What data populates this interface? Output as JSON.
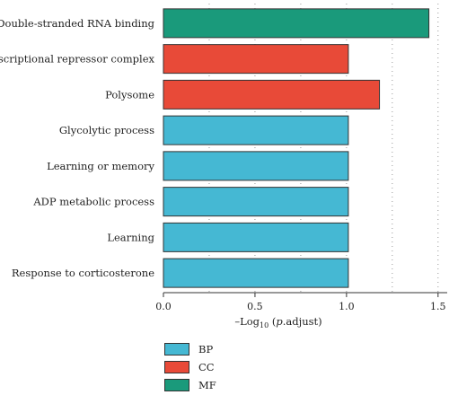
{
  "chart_data": {
    "type": "bar",
    "orientation": "horizontal",
    "categories": [
      "Double-stranded RNA binding",
      "Transcriptional repressor complex",
      "Polysome",
      "Glycolytic process",
      "Learning or memory",
      "ADP metabolic process",
      "Learning",
      "Response to corticosterone"
    ],
    "values": [
      1.45,
      1.01,
      1.18,
      1.01,
      1.01,
      1.01,
      1.01,
      1.01
    ],
    "groups": [
      "MF",
      "CC",
      "CC",
      "BP",
      "BP",
      "BP",
      "BP",
      "BP"
    ],
    "xlim": [
      0.0,
      1.55
    ],
    "xticks": [
      "0.0",
      "0.5",
      "1.0",
      "1.5"
    ],
    "xtick_values": [
      0.0,
      0.5,
      1.0,
      1.5
    ],
    "xlabel_parts": {
      "prefix": "–Log",
      "sub": "10",
      "open": " (",
      "italic": "p",
      "rest": ".adjust)"
    },
    "ylabel": "",
    "title": "",
    "grid": "dotted vertical lines at 0.25-step positions",
    "legend": {
      "position": "bottom",
      "entries": [
        {
          "name": "BP",
          "color": "#45b8d3"
        },
        {
          "name": "CC",
          "color": "#e84a38"
        },
        {
          "name": "MF",
          "color": "#1a9a7b"
        }
      ]
    }
  }
}
